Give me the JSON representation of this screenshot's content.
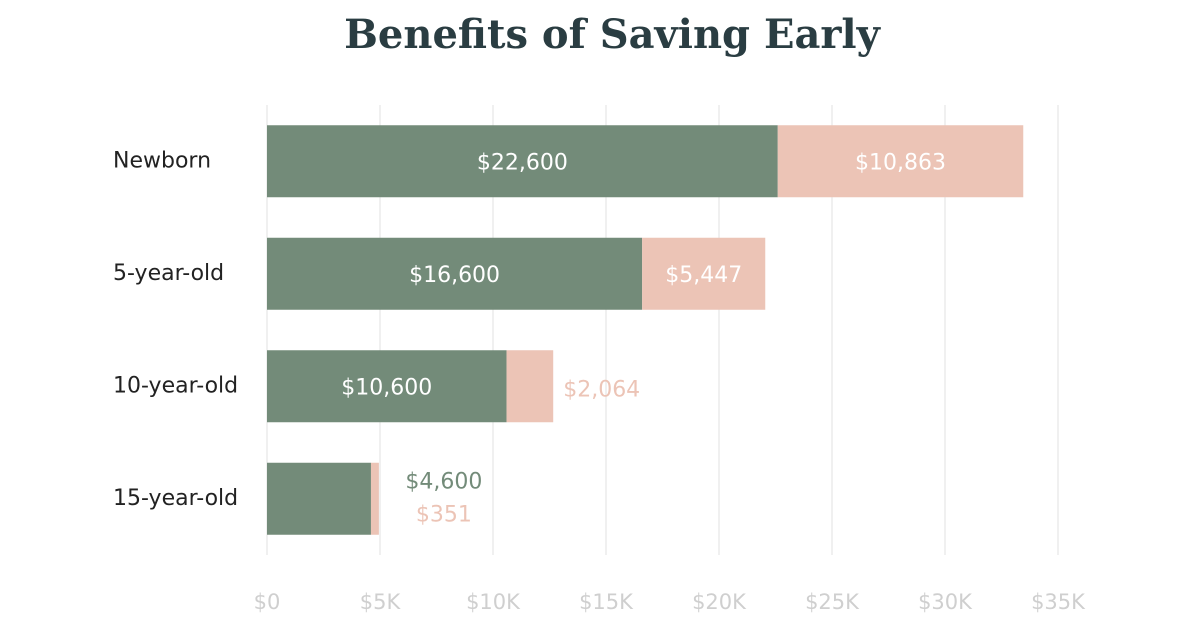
{
  "chart_data": {
    "type": "stacked-bar-horizontal",
    "title": "Benefits of Saving Early",
    "categories": [
      "Newborn",
      "5-year-old",
      "10-year-old",
      "15-year-old"
    ],
    "series": [
      {
        "color": "#738b79",
        "values": [
          22600,
          16600,
          10600,
          4600
        ],
        "value_labels": [
          "$22,600",
          "$16,600",
          "$10,600",
          "$4,600"
        ]
      },
      {
        "color": "#ecc4b6",
        "values": [
          10863,
          5447,
          2064,
          351
        ],
        "value_labels": [
          "$10,863",
          "$5,447",
          "$2,064",
          "$351"
        ]
      }
    ],
    "xlim": [
      0,
      35000
    ],
    "xticks": [
      {
        "value": 0,
        "label": "$0"
      },
      {
        "value": 5000,
        "label": "$5K"
      },
      {
        "value": 10000,
        "label": "$10K"
      },
      {
        "value": 15000,
        "label": "$15K"
      },
      {
        "value": 20000,
        "label": "$20K"
      },
      {
        "value": 25000,
        "label": "$25K"
      },
      {
        "value": 30000,
        "label": "$30K"
      },
      {
        "value": 35000,
        "label": "$35K"
      }
    ],
    "grid": true
  }
}
